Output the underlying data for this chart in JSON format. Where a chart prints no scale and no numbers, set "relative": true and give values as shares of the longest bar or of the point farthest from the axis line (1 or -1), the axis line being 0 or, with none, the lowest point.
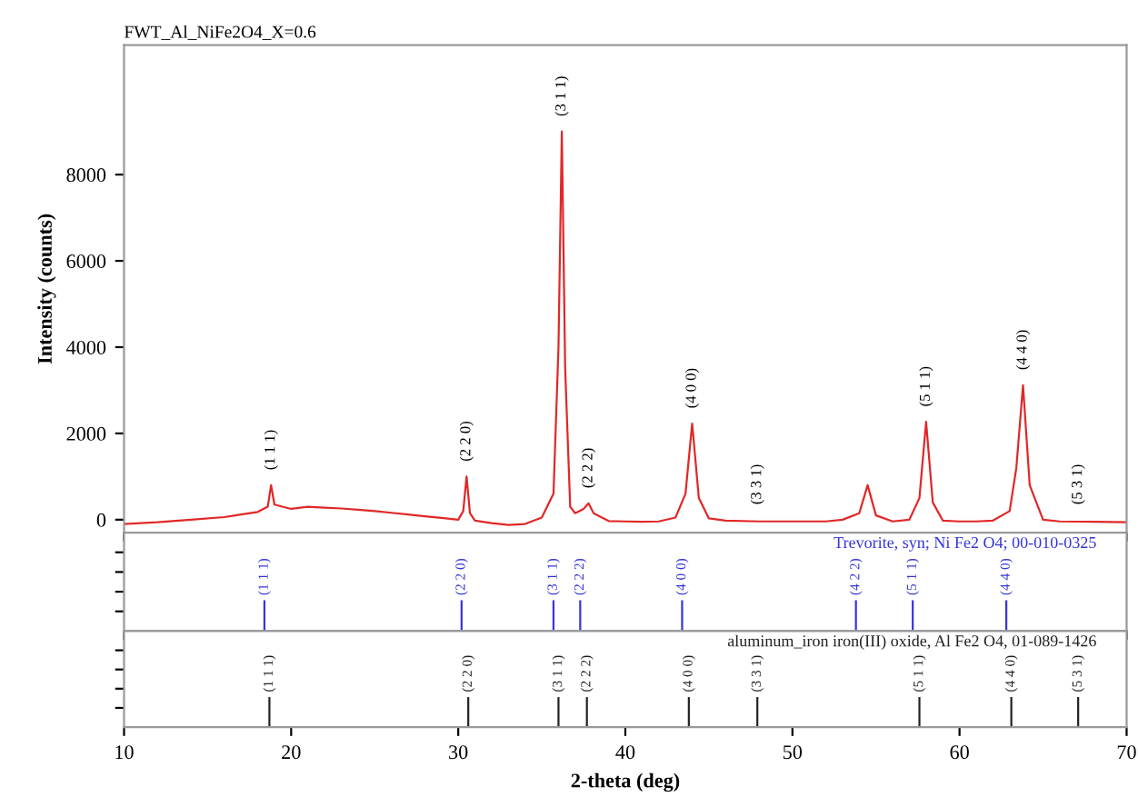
{
  "chart_data": [
    {
      "type": "line",
      "title": "FWT_Al_NiFe2O4_X=0.6",
      "ylabel": "Intensity (counts)",
      "xlim": [
        10,
        70
      ],
      "xticks": [
        10,
        20,
        30,
        40,
        50,
        60,
        70
      ],
      "ylim": [
        -300,
        11000
      ],
      "yticks": [
        0,
        2000,
        4000,
        6000,
        8000
      ],
      "tick_labels": "y",
      "grid": false,
      "legend": false,
      "marker": "none",
      "line_style": "solid",
      "series": [
        {
          "color": "#e02828",
          "x": [
            10,
            12,
            14,
            16,
            17,
            18,
            18.6,
            18.8,
            19.0,
            20,
            21,
            22,
            23,
            24,
            25,
            26,
            27,
            28,
            29,
            30,
            30.3,
            30.5,
            30.7,
            31,
            32,
            33,
            34,
            35,
            35.7,
            36.0,
            36.2,
            36.4,
            36.7,
            37,
            37.5,
            37.8,
            38.1,
            39,
            40,
            41,
            42,
            43,
            43.6,
            44.0,
            44.4,
            45,
            46,
            48,
            50,
            52,
            53,
            54.0,
            54.5,
            55.0,
            56,
            57,
            57.6,
            58.0,
            58.4,
            59,
            60,
            61,
            62,
            63,
            63.4,
            63.8,
            64.2,
            65,
            66,
            68,
            70
          ],
          "values": [
            -100,
            -60,
            0,
            60,
            120,
            180,
            300,
            800,
            350,
            250,
            300,
            280,
            260,
            230,
            200,
            160,
            120,
            80,
            40,
            0,
            200,
            1000,
            150,
            -20,
            -80,
            -120,
            -100,
            50,
            600,
            4000,
            9000,
            3500,
            300,
            150,
            250,
            380,
            150,
            -30,
            -40,
            -50,
            -40,
            50,
            600,
            2230,
            500,
            30,
            -20,
            -40,
            -40,
            -40,
            0,
            150,
            800,
            100,
            -40,
            0,
            500,
            2270,
            400,
            -20,
            -40,
            -40,
            -20,
            200,
            1200,
            3120,
            800,
            0,
            -40,
            -50,
            -60
          ]
        }
      ],
      "annotations": [
        {
          "text": "(1 1 1)",
          "x": 18.8,
          "y": 800
        },
        {
          "text": "(2 2 0)",
          "x": 30.5,
          "y": 1000
        },
        {
          "text": "(3 1 1)",
          "x": 36.2,
          "y": 9000
        },
        {
          "text": "(2 2 2)",
          "x": 37.8,
          "y": 380
        },
        {
          "text": "(4 0 0)",
          "x": 44.0,
          "y": 2230
        },
        {
          "text": "(3 3 1)",
          "x": 47.9,
          "y": 0
        },
        {
          "text": "(5 1 1)",
          "x": 58.0,
          "y": 2270
        },
        {
          "text": "(4 4 0)",
          "x": 63.8,
          "y": 3120
        },
        {
          "text": "(5 3 1)",
          "x": 67.1,
          "y": 0
        }
      ]
    },
    {
      "type": "bar",
      "relative": true,
      "xlim": [
        10,
        70
      ],
      "xticks": [
        10,
        20,
        30,
        40,
        50,
        60,
        70
      ],
      "tick_labels": false,
      "color": "#3535d8",
      "title": "Trevorite, syn; Ni Fe2 O4; 00-010-0325",
      "x": [
        18.4,
        30.2,
        35.7,
        37.3,
        43.4,
        53.8,
        57.2,
        62.8
      ],
      "values": [
        1,
        1,
        1,
        1,
        1,
        1,
        1,
        1
      ],
      "annotations": [
        {
          "text": "(1 1 1)",
          "x": 18.4,
          "y": 1
        },
        {
          "text": "(2 2 0)",
          "x": 30.2,
          "y": 1
        },
        {
          "text": "(3 1 1)",
          "x": 35.7,
          "y": 1
        },
        {
          "text": "(2 2 2)",
          "x": 37.3,
          "y": 1
        },
        {
          "text": "(4 0 0)",
          "x": 43.4,
          "y": 1
        },
        {
          "text": "(4 2 2)",
          "x": 53.8,
          "y": 1
        },
        {
          "text": "(5 1 1)",
          "x": 57.2,
          "y": 1
        },
        {
          "text": "(4 4 0)",
          "x": 62.8,
          "y": 1
        }
      ]
    },
    {
      "type": "bar",
      "relative": true,
      "xlabel": "2-theta (deg)",
      "xlim": [
        10,
        70
      ],
      "xticks": [
        10,
        20,
        30,
        40,
        50,
        60,
        70
      ],
      "tick_labels": "x",
      "color": "#222222",
      "title": "aluminum_iron iron(III) oxide, Al Fe2 O4, 01-089-1426",
      "x": [
        18.7,
        30.6,
        36.0,
        37.7,
        43.8,
        47.9,
        57.6,
        63.1,
        67.1
      ],
      "values": [
        1,
        1,
        1,
        1,
        1,
        1,
        1,
        1,
        1
      ],
      "annotations": [
        {
          "text": "(1 1 1)",
          "x": 18.7,
          "y": 1
        },
        {
          "text": "(2 2 0)",
          "x": 30.6,
          "y": 1
        },
        {
          "text": "(3 1 1)",
          "x": 36.0,
          "y": 1
        },
        {
          "text": "(2 2 2)",
          "x": 37.7,
          "y": 1
        },
        {
          "text": "(4 0 0)",
          "x": 43.8,
          "y": 1
        },
        {
          "text": "(3 3 1)",
          "x": 47.9,
          "y": 1
        },
        {
          "text": "(5 1 1)",
          "x": 57.6,
          "y": 1
        },
        {
          "text": "(4 4 0)",
          "x": 63.1,
          "y": 1
        },
        {
          "text": "(5 3 1)",
          "x": 67.1,
          "y": 1
        }
      ]
    }
  ]
}
